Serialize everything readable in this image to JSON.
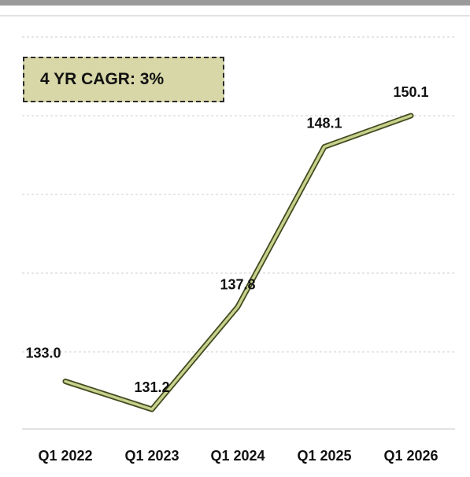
{
  "chart_data": {
    "type": "line",
    "categories": [
      "Q1 2022",
      "Q1 2023",
      "Q1 2024",
      "Q1 2025",
      "Q1 2026"
    ],
    "values": [
      133.0,
      131.2,
      137.8,
      148.1,
      150.1
    ],
    "data_labels": [
      "133.0",
      "131.2",
      "137.8",
      "148.1",
      "150.1"
    ],
    "annotation": "4 YR CAGR: 3%",
    "ylim": [
      130,
      152
    ],
    "grid": true,
    "line_color": "#c8d08c",
    "line_outline_color": "#3f4a1e",
    "annotation_fill": "#d7d7a8"
  }
}
